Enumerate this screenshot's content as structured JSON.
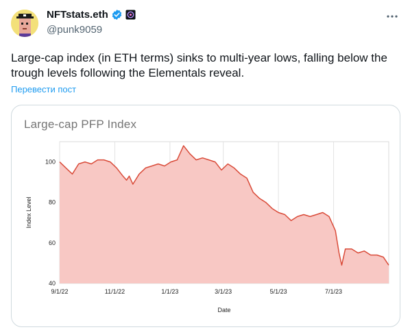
{
  "author": {
    "display_name": "NFTstats.eth",
    "handle": "@punk9059",
    "icons": [
      "verified-badge-icon",
      "affiliate-badge-icon"
    ]
  },
  "tweet": {
    "text": "Large-cap index (in ETH terms) sinks to multi-year lows, falling below the trough levels following the Elementals reveal.",
    "translate_label": "Перевести пост"
  },
  "colors": {
    "line": "#d94a38",
    "fill": "#f8c8c4",
    "link": "#1d9bf0",
    "verified": "#1d9bf0"
  },
  "chart_data": {
    "type": "area",
    "title": "Large-cap PFP Index",
    "xlabel": "Date",
    "ylabel": "Index Level",
    "ylim": [
      40,
      110
    ],
    "y_ticks": [
      100,
      80,
      60,
      40
    ],
    "x_ticks": [
      "9/1/22",
      "11/1/22",
      "1/1/23",
      "3/1/23",
      "5/1/23",
      "7/1/23"
    ],
    "grid": "vertical",
    "series": [
      {
        "points": [
          [
            "2022-09-01",
            100
          ],
          [
            "2022-09-08",
            97
          ],
          [
            "2022-09-15",
            94
          ],
          [
            "2022-09-22",
            99
          ],
          [
            "2022-09-29",
            100
          ],
          [
            "2022-10-06",
            99
          ],
          [
            "2022-10-13",
            101
          ],
          [
            "2022-10-20",
            101
          ],
          [
            "2022-10-27",
            100
          ],
          [
            "2022-11-03",
            97
          ],
          [
            "2022-11-10",
            93
          ],
          [
            "2022-11-14",
            91
          ],
          [
            "2022-11-17",
            93
          ],
          [
            "2022-11-21",
            89
          ],
          [
            "2022-11-28",
            94
          ],
          [
            "2022-12-05",
            97
          ],
          [
            "2022-12-12",
            98
          ],
          [
            "2022-12-19",
            99
          ],
          [
            "2022-12-26",
            98
          ],
          [
            "2023-01-02",
            100
          ],
          [
            "2023-01-09",
            101
          ],
          [
            "2023-01-16",
            108
          ],
          [
            "2023-01-23",
            104
          ],
          [
            "2023-01-30",
            101
          ],
          [
            "2023-02-06",
            102
          ],
          [
            "2023-02-13",
            101
          ],
          [
            "2023-02-20",
            100
          ],
          [
            "2023-02-27",
            96
          ],
          [
            "2023-03-06",
            99
          ],
          [
            "2023-03-13",
            97
          ],
          [
            "2023-03-20",
            94
          ],
          [
            "2023-03-27",
            92
          ],
          [
            "2023-04-03",
            85
          ],
          [
            "2023-04-10",
            82
          ],
          [
            "2023-04-17",
            80
          ],
          [
            "2023-04-24",
            77
          ],
          [
            "2023-05-01",
            75
          ],
          [
            "2023-05-08",
            74
          ],
          [
            "2023-05-15",
            71
          ],
          [
            "2023-05-22",
            73
          ],
          [
            "2023-05-29",
            74
          ],
          [
            "2023-06-05",
            73
          ],
          [
            "2023-06-12",
            74
          ],
          [
            "2023-06-19",
            75
          ],
          [
            "2023-06-26",
            73
          ],
          [
            "2023-07-03",
            66
          ],
          [
            "2023-07-07",
            55
          ],
          [
            "2023-07-10",
            49
          ],
          [
            "2023-07-14",
            57
          ],
          [
            "2023-07-21",
            57
          ],
          [
            "2023-07-28",
            55
          ],
          [
            "2023-08-04",
            56
          ],
          [
            "2023-08-11",
            54
          ],
          [
            "2023-08-18",
            54
          ],
          [
            "2023-08-25",
            53
          ],
          [
            "2023-08-31",
            49
          ]
        ]
      }
    ]
  }
}
